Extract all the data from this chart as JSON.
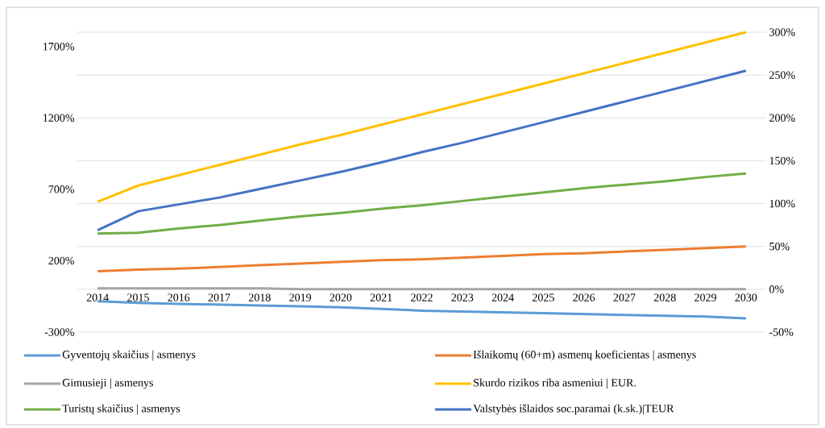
{
  "chart_data": {
    "type": "line",
    "categories": [
      "2014",
      "2015",
      "2016",
      "2017",
      "2018",
      "2019",
      "2020",
      "2021",
      "2022",
      "2023",
      "2024",
      "2025",
      "2026",
      "2027",
      "2028",
      "2029",
      "2030"
    ],
    "series": [
      {
        "name": "Gyventojų skaičius | asmenys",
        "color": "#5b9bd5",
        "axis": "y2",
        "values": [
          -14,
          -16,
          -17,
          -18,
          -19,
          -20,
          -21,
          -23,
          -25,
          -26,
          -27,
          -28,
          -29,
          -30,
          -31,
          -32,
          -34
        ]
      },
      {
        "name": "Išlaikomų (60+m) asmenų koeficientas | asmenys",
        "color": "#ed7d31",
        "axis": "y2",
        "values": [
          21,
          23,
          24,
          26,
          28,
          30,
          32,
          34,
          35,
          37,
          39,
          41,
          42,
          44,
          46,
          48,
          50
        ]
      },
      {
        "name": "Gimusieji | asmenys",
        "color": "#a5a5a5",
        "axis": "y2",
        "values": [
          1,
          1,
          1,
          1,
          1,
          0,
          0,
          0,
          0,
          0,
          0,
          0,
          0,
          0,
          0,
          0,
          0
        ]
      },
      {
        "name": "Skurdo rizikos riba asmeniui | EUR.",
        "color": "#ffc000",
        "axis": "y2",
        "values": [
          102,
          121,
          133,
          145,
          157,
          169,
          180,
          192,
          204,
          216,
          228,
          240,
          252,
          264,
          276,
          288,
          300
        ]
      },
      {
        "name": "Turistų skaičius | asmenys",
        "color": "#70ad47",
        "axis": "y2",
        "values": [
          65,
          66,
          71,
          75,
          80,
          85,
          89,
          94,
          98,
          103,
          108,
          113,
          118,
          122,
          126,
          131,
          135
        ]
      },
      {
        "name": "Valstybės išlaidos soc.paramai (k.sk.)|TEUR",
        "color": "#4472c4",
        "axis": "y2",
        "values": [
          69,
          91,
          99,
          107,
          117,
          127,
          137,
          148,
          160,
          171,
          183,
          195,
          207,
          219,
          231,
          243,
          255
        ]
      }
    ],
    "ylim": [
      -300,
      1800
    ],
    "yticks": [
      {
        "value": -300,
        "label": "-300%"
      },
      {
        "value": 200,
        "label": "200%"
      },
      {
        "value": 700,
        "label": "700%"
      },
      {
        "value": 1200,
        "label": "1200%"
      },
      {
        "value": 1700,
        "label": "1700%"
      }
    ],
    "y2lim": [
      -50,
      300
    ],
    "y2ticks": [
      {
        "value": -50,
        "label": "-50%"
      },
      {
        "value": 0,
        "label": "0%"
      },
      {
        "value": 50,
        "label": "50%"
      },
      {
        "value": 100,
        "label": "100%"
      },
      {
        "value": 150,
        "label": "150%"
      },
      {
        "value": 200,
        "label": "200%"
      },
      {
        "value": 250,
        "label": "250%"
      },
      {
        "value": 300,
        "label": "300%"
      }
    ],
    "grid": "y",
    "legend": "bottom"
  }
}
